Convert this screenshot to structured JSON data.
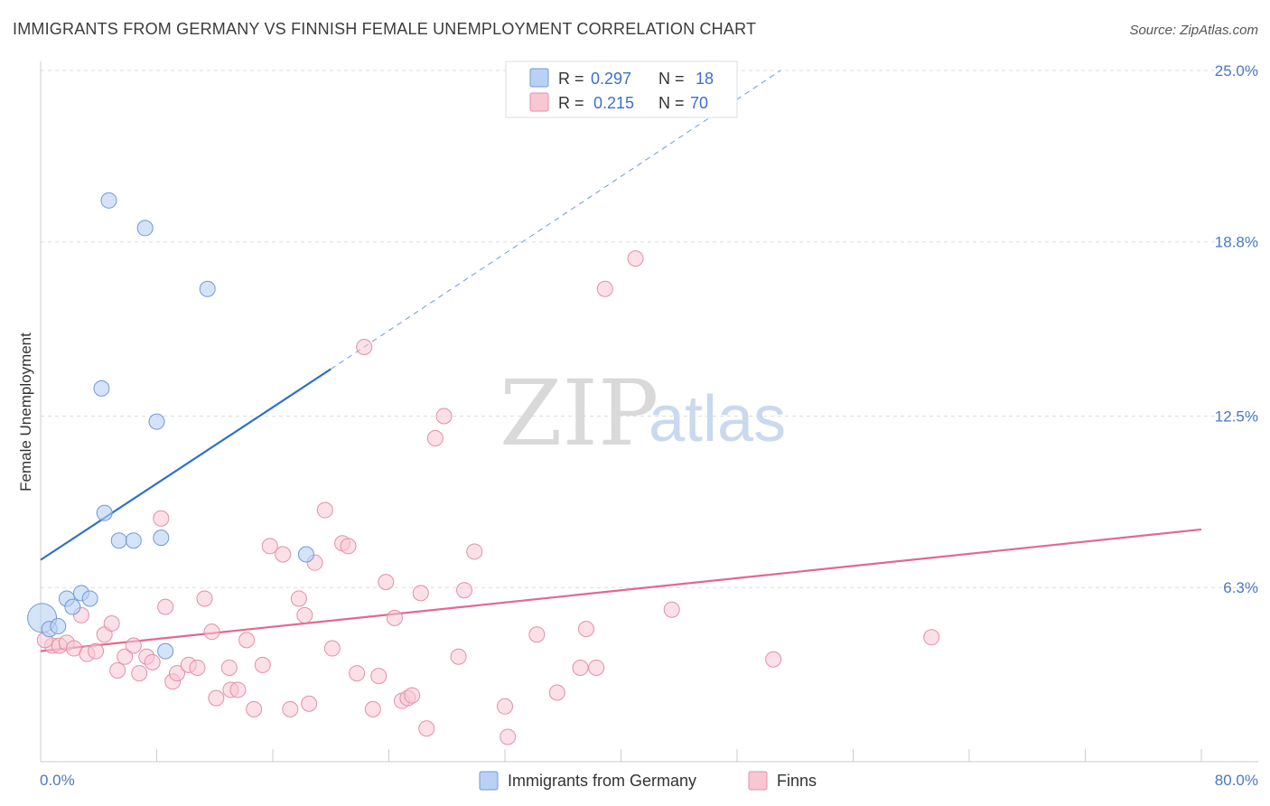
{
  "header": {
    "title": "IMMIGRANTS FROM GERMANY VS FINNISH FEMALE UNEMPLOYMENT CORRELATION CHART",
    "source": "Source: ZipAtlas.com"
  },
  "watermark": {
    "zip": "ZIP",
    "atlas": "atlas"
  },
  "legend": {
    "rows": [
      {
        "r_label": "R =",
        "r_value": "0.297",
        "n_label": "N =",
        "n_value": "18"
      },
      {
        "r_label": "R =",
        "r_value": "0.215",
        "n_label": "N =",
        "n_value": "70"
      }
    ]
  },
  "bottom_legend": {
    "series1": "Immigrants from Germany",
    "series2": "Finns"
  },
  "colors": {
    "blue_fill": "#b9d1f3",
    "blue_stroke": "#6f9ad8",
    "blue_line": "#2f6fcc",
    "pink_fill": "#f7c7d4",
    "pink_stroke": "#e38fa8",
    "pink_line": "#e2688f",
    "grid": "#dddddd"
  },
  "chart_data": {
    "type": "scatter",
    "title": "IMMIGRANTS FROM GERMANY VS FINNISH FEMALE UNEMPLOYMENT CORRELATION CHART",
    "xlabel": "",
    "ylabel": "Female Unemployment",
    "xlim": [
      0,
      80
    ],
    "ylim": [
      0,
      25
    ],
    "x_tick_labels": [
      "0.0%",
      "80.0%"
    ],
    "y_ticks": [
      6.3,
      12.5,
      18.8,
      25.0
    ],
    "y_tick_labels": [
      "6.3%",
      "12.5%",
      "18.8%",
      "25.0%"
    ],
    "series": [
      {
        "name": "Immigrants from Germany",
        "R": 0.297,
        "N": 18,
        "trend": {
          "x0": 0,
          "y0": 7.3,
          "x1": 20,
          "y1": 14.2,
          "dashed_to": [
            51,
            25
          ]
        },
        "points": [
          [
            0.1,
            5.2
          ],
          [
            0.6,
            4.8
          ],
          [
            1.2,
            4.9
          ],
          [
            1.8,
            5.9
          ],
          [
            2.2,
            5.6
          ],
          [
            2.8,
            6.1
          ],
          [
            3.4,
            5.9
          ],
          [
            4.2,
            13.5
          ],
          [
            4.4,
            9.0
          ],
          [
            4.7,
            20.3
          ],
          [
            5.4,
            8.0
          ],
          [
            6.4,
            8.0
          ],
          [
            7.2,
            19.3
          ],
          [
            8.0,
            12.3
          ],
          [
            8.3,
            8.1
          ],
          [
            8.6,
            4.0
          ],
          [
            11.5,
            17.1
          ],
          [
            18.3,
            7.5
          ]
        ]
      },
      {
        "name": "Finns",
        "R": 0.215,
        "N": 70,
        "trend": {
          "x0": 0,
          "y0": 4.0,
          "x1": 80,
          "y1": 8.4
        },
        "points": [
          [
            0.8,
            4.2
          ],
          [
            1.3,
            4.2
          ],
          [
            1.8,
            4.3
          ],
          [
            2.3,
            4.1
          ],
          [
            2.8,
            5.3
          ],
          [
            3.2,
            3.9
          ],
          [
            3.8,
            4.0
          ],
          [
            4.4,
            4.6
          ],
          [
            4.9,
            5.0
          ],
          [
            5.3,
            3.3
          ],
          [
            5.8,
            3.8
          ],
          [
            6.4,
            4.2
          ],
          [
            6.8,
            3.2
          ],
          [
            7.3,
            3.8
          ],
          [
            7.7,
            3.6
          ],
          [
            8.3,
            8.8
          ],
          [
            8.6,
            5.6
          ],
          [
            9.1,
            2.9
          ],
          [
            9.4,
            3.2
          ],
          [
            10.2,
            3.5
          ],
          [
            10.8,
            3.4
          ],
          [
            11.3,
            5.9
          ],
          [
            11.8,
            4.7
          ],
          [
            12.1,
            2.3
          ],
          [
            13.1,
            2.6
          ],
          [
            13.6,
            2.6
          ],
          [
            14.2,
            4.4
          ],
          [
            14.7,
            1.9
          ],
          [
            15.3,
            3.5
          ],
          [
            15.8,
            7.8
          ],
          [
            16.7,
            7.5
          ],
          [
            17.2,
            1.9
          ],
          [
            17.8,
            5.9
          ],
          [
            18.2,
            5.3
          ],
          [
            18.5,
            2.1
          ],
          [
            18.9,
            7.2
          ],
          [
            19.6,
            9.1
          ],
          [
            20.1,
            4.1
          ],
          [
            20.8,
            7.9
          ],
          [
            21.2,
            7.8
          ],
          [
            21.8,
            3.2
          ],
          [
            22.3,
            15.0
          ],
          [
            22.9,
            1.9
          ],
          [
            23.3,
            3.1
          ],
          [
            23.8,
            6.5
          ],
          [
            24.4,
            5.2
          ],
          [
            24.9,
            2.2
          ],
          [
            25.3,
            2.3
          ],
          [
            25.6,
            2.4
          ],
          [
            26.2,
            6.1
          ],
          [
            26.6,
            1.2
          ],
          [
            27.2,
            11.7
          ],
          [
            27.8,
            12.5
          ],
          [
            28.8,
            3.8
          ],
          [
            29.2,
            6.2
          ],
          [
            29.9,
            7.6
          ],
          [
            32.0,
            2.0
          ],
          [
            32.2,
            0.9
          ],
          [
            34.2,
            4.6
          ],
          [
            35.6,
            2.5
          ],
          [
            37.2,
            3.4
          ],
          [
            37.6,
            4.8
          ],
          [
            38.3,
            3.4
          ],
          [
            38.9,
            17.1
          ],
          [
            41.0,
            18.2
          ],
          [
            43.5,
            5.5
          ],
          [
            50.5,
            3.7
          ],
          [
            61.4,
            4.5
          ],
          [
            0.3,
            4.4
          ],
          [
            13.0,
            3.4
          ]
        ]
      }
    ]
  }
}
